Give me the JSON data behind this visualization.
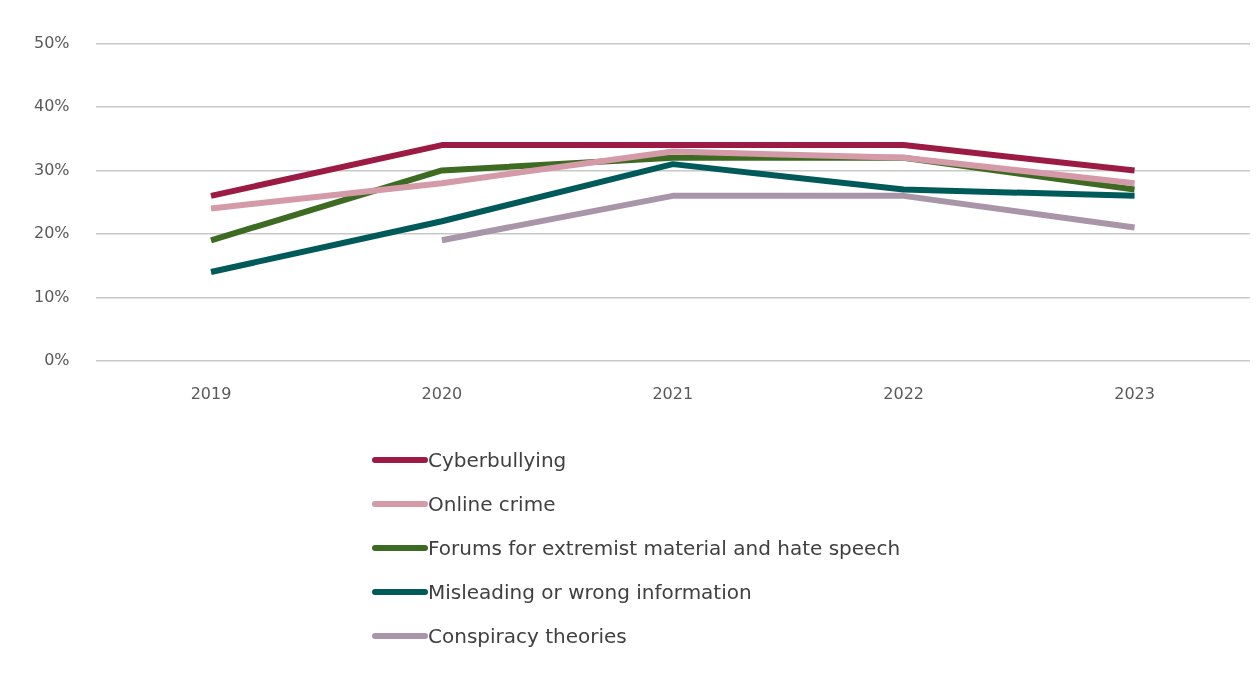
{
  "chart_data": {
    "type": "line",
    "categories": [
      "2019",
      "2020",
      "2021",
      "2022",
      "2023"
    ],
    "series": [
      {
        "name": "Cyberbullying",
        "color": "#9b1b45",
        "values": [
          26,
          34,
          34,
          34,
          30
        ]
      },
      {
        "name": "Online crime",
        "color": "#d49aa8",
        "values": [
          24,
          28,
          33,
          32,
          28
        ]
      },
      {
        "name": "Forums for extremist material and hate speech",
        "color": "#3e6b22",
        "values": [
          19,
          30,
          32,
          32,
          27
        ]
      },
      {
        "name": "Misleading or wrong information",
        "color": "#005a5a",
        "values": [
          14,
          22,
          31,
          27,
          26
        ]
      },
      {
        "name": "Conspiracy theories",
        "color": "#a895a8",
        "values": [
          null,
          19,
          26,
          26,
          21
        ]
      }
    ],
    "ylim": [
      0,
      50
    ],
    "yticks": [
      {
        "value": 0,
        "label": "0%"
      },
      {
        "value": 10,
        "label": "10%"
      },
      {
        "value": 20,
        "label": "20%"
      },
      {
        "value": 30,
        "label": "30%"
      },
      {
        "value": 40,
        "label": "40%"
      },
      {
        "value": 50,
        "label": "50%"
      }
    ],
    "grid": "y",
    "legend": "bottom",
    "marker": "none",
    "line_style": "solid"
  }
}
